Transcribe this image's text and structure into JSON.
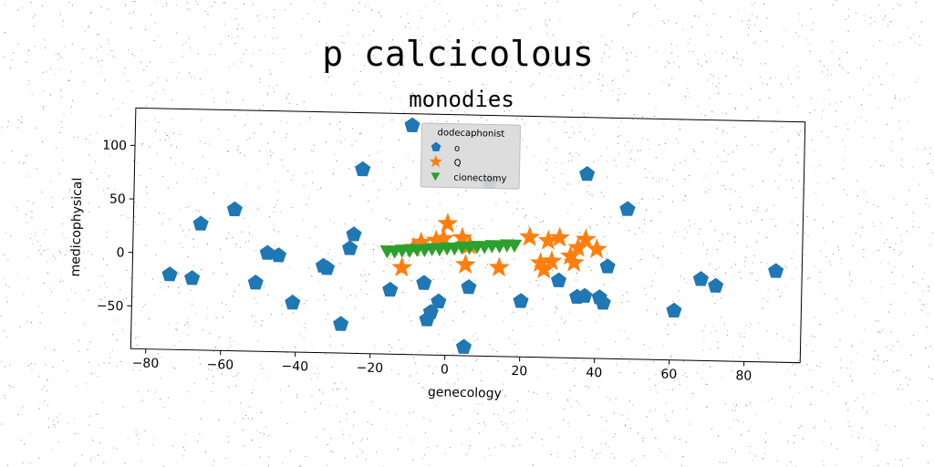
{
  "title": "p calcicolous",
  "chart_data": {
    "type": "scatter",
    "title": "monodies",
    "xlabel": "genecology",
    "ylabel": "medicophysical",
    "xlim": [
      -84,
      95
    ],
    "ylim": [
      -90,
      135
    ],
    "xticks": [
      -80,
      -60,
      -40,
      -20,
      0,
      20,
      40,
      60,
      80
    ],
    "xtick_labels": [
      "−80",
      "−60",
      "−40",
      "−20",
      "0",
      "20",
      "40",
      "60",
      "80"
    ],
    "yticks": [
      -50,
      0,
      50,
      100
    ],
    "ytick_labels": [
      "−50",
      "0",
      "50",
      "100"
    ],
    "grid": false,
    "legend": {
      "title": "dodecaphonist",
      "placement": "top-center"
    },
    "series": [
      {
        "name": "o",
        "marker": "pentagon",
        "color": "#1f77b4",
        "x": [
          -74,
          -68,
          -66,
          -57,
          -51,
          -48,
          -45,
          -41,
          -33,
          -32,
          -28,
          -26,
          -25,
          -23,
          -15,
          -10,
          -6,
          -5,
          -4,
          -2,
          5,
          6,
          11,
          20,
          30,
          35,
          37,
          37,
          41,
          42,
          43,
          48,
          61,
          68,
          72,
          88
        ],
        "y": [
          -20,
          -23,
          28,
          42,
          -26,
          2,
          0,
          -44,
          -9,
          -11,
          -63,
          8,
          21,
          82,
          -30,
          124,
          -23,
          -57,
          -50,
          -40,
          -82,
          -26,
          73,
          -38,
          -18,
          -33,
          -32,
          82,
          -33,
          -38,
          -4,
          50,
          -44,
          -14,
          -20,
          -5
        ]
      },
      {
        "name": "Q",
        "marker": "star",
        "color": "#ff7f0e",
        "x": [
          -12,
          -9,
          -7,
          -3,
          -1,
          0,
          4,
          5,
          6,
          14,
          22,
          25,
          26,
          27,
          28,
          30,
          33,
          34,
          35,
          37,
          40
        ],
        "y": [
          -9,
          10,
          15,
          17,
          19,
          33,
          20,
          -5,
          13,
          -7,
          22,
          -2,
          -8,
          19,
          0,
          22,
          5,
          -1,
          13,
          21,
          12
        ]
      },
      {
        "name": "cionectomy",
        "marker": "triangle-down",
        "color": "#2ca02c",
        "x": [
          -16,
          -14,
          -12,
          -10,
          -8,
          -6,
          -4,
          -2,
          0,
          2,
          4,
          6,
          8,
          10,
          12,
          14,
          16,
          18
        ],
        "y": [
          6,
          6,
          7,
          7,
          8,
          8,
          9,
          9,
          10,
          10,
          11,
          11,
          12,
          12,
          13,
          13,
          14,
          14
        ]
      }
    ]
  }
}
